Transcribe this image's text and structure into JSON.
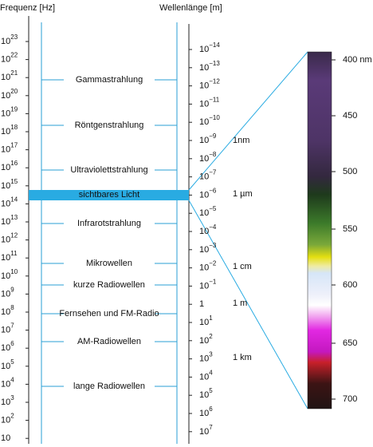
{
  "header": {
    "left_title": "Frequenz [Hz]",
    "right_title": "Wellenlänge [m]"
  },
  "frequency_axis": [
    {
      "base": "10",
      "exp": "23"
    },
    {
      "base": "10",
      "exp": "22"
    },
    {
      "base": "10",
      "exp": "21"
    },
    {
      "base": "10",
      "exp": "20"
    },
    {
      "base": "10",
      "exp": "19"
    },
    {
      "base": "10",
      "exp": "18"
    },
    {
      "base": "10",
      "exp": "17"
    },
    {
      "base": "10",
      "exp": "16"
    },
    {
      "base": "10",
      "exp": "15"
    },
    {
      "base": "10",
      "exp": "14"
    },
    {
      "base": "10",
      "exp": "13"
    },
    {
      "base": "10",
      "exp": "12"
    },
    {
      "base": "10",
      "exp": "11"
    },
    {
      "base": "10",
      "exp": "10"
    },
    {
      "base": "10",
      "exp": "9"
    },
    {
      "base": "10",
      "exp": "8"
    },
    {
      "base": "10",
      "exp": "7"
    },
    {
      "base": "10",
      "exp": "6"
    },
    {
      "base": "10",
      "exp": "5"
    },
    {
      "base": "10",
      "exp": "4"
    },
    {
      "base": "10",
      "exp": "3"
    },
    {
      "base": "10",
      "exp": "2"
    },
    {
      "base": "10"
    }
  ],
  "wavelength_axis": [
    {
      "base": "10",
      "exp": "−14"
    },
    {
      "base": "10",
      "exp": "−13"
    },
    {
      "base": "10",
      "exp": "−12"
    },
    {
      "base": "10",
      "exp": "−11"
    },
    {
      "base": "10",
      "exp": "−10"
    },
    {
      "base": "10",
      "exp": "−9"
    },
    {
      "base": "10",
      "exp": "−8"
    },
    {
      "base": "10",
      "exp": "−7"
    },
    {
      "base": "10",
      "exp": "−6"
    },
    {
      "base": "10",
      "exp": "−5"
    },
    {
      "base": "10",
      "exp": "−4"
    },
    {
      "base": "10",
      "exp": "−3"
    },
    {
      "base": "10",
      "exp": "−2"
    },
    {
      "base": "10",
      "exp": "−1"
    },
    {
      "base": "1"
    },
    {
      "base": "10",
      "exp": "1"
    },
    {
      "base": "10",
      "exp": "2"
    },
    {
      "base": "10",
      "exp": "3"
    },
    {
      "base": "10",
      "exp": "4"
    },
    {
      "base": "10",
      "exp": "5"
    },
    {
      "base": "10",
      "exp": "6"
    },
    {
      "base": "10",
      "exp": "7"
    }
  ],
  "bands": [
    "Gammastrahlung",
    "Röntgenstrahlung",
    "Ultraviolettstrahlung",
    "sichtbares Licht",
    "Infrarotstrahlung",
    "Mikrowellen",
    "kurze Radiowellen",
    "Fernsehen und FM-Radio",
    "AM-Radiowellen",
    "lange Radiowellen"
  ],
  "scale_marks": [
    "1nm",
    "1 µm",
    "1 cm",
    "1 m",
    "1 km"
  ],
  "visible_spectrum": [
    "400 nm",
    "450",
    "500",
    "550",
    "600",
    "650",
    "700"
  ]
}
